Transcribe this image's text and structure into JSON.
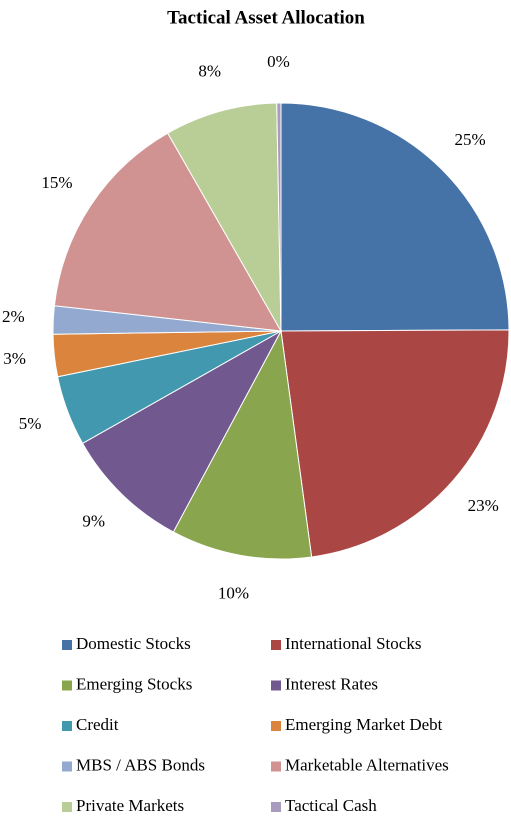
{
  "chart_data": {
    "type": "pie",
    "title": "Tactical Asset Allocation",
    "categories": [
      "Domestic Stocks",
      "International Stocks",
      "Emerging Stocks",
      "Interest Rates",
      "Credit",
      "Emerging Market Debt",
      "MBS / ABS Bonds",
      "Marketable Alternatives",
      "Private Markets",
      "Tactical Cash"
    ],
    "values": [
      25,
      23,
      10,
      9,
      5,
      3,
      2,
      15,
      8,
      0.3
    ],
    "value_labels": [
      "25%",
      "23%",
      "10%",
      "9%",
      "5%",
      "3%",
      "2%",
      "15%",
      "8%",
      "0%"
    ],
    "colors": [
      "#4572a7",
      "#aa4643",
      "#89a54e",
      "#71588f",
      "#4198af",
      "#db843d",
      "#93a9cf",
      "#d19392",
      "#b9cd96",
      "#a99bbd"
    ],
    "legend": "bottom"
  }
}
